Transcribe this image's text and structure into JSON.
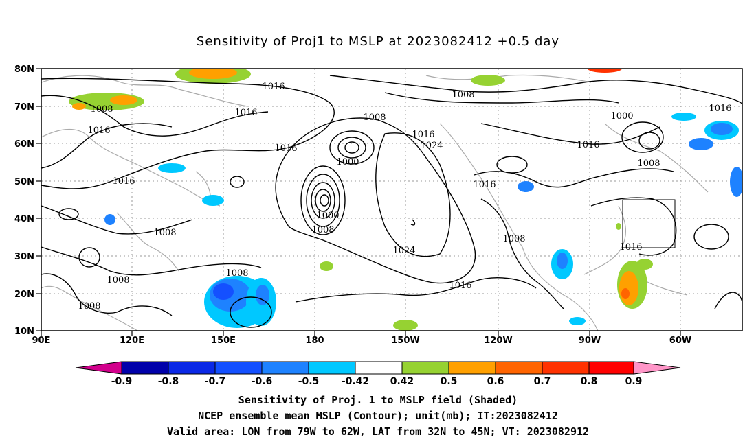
{
  "title": "Sensitivity of Proj1 to MSLP at 2023082412 +0.5 day",
  "map": {
    "lon_labels": [
      "90E",
      "120E",
      "150E",
      "180",
      "150W",
      "120W",
      "90W",
      "60W"
    ],
    "lat_labels": [
      "80N",
      "70N",
      "60N",
      "50N",
      "40N",
      "30N",
      "20N",
      "10N"
    ],
    "contour_labels": [
      "1016",
      "1008",
      "1016",
      "1008",
      "1016",
      "1016",
      "1016",
      "1008",
      "1000",
      "1000",
      "1008",
      "1016",
      "1024",
      "1024",
      "1016",
      "1016",
      "1008",
      "1000",
      "1008",
      "1016",
      "1016",
      "1008",
      "1008",
      "1008",
      "1008",
      "1016",
      "1016",
      "1008"
    ],
    "colors": {
      "land": "#aaaaaa",
      "contour": "#000000",
      "grid": "#999999"
    }
  },
  "colorbar": {
    "labels": [
      "-0.9",
      "-0.8",
      "-0.7",
      "-0.6",
      "-0.5",
      "-0.42",
      "0.42",
      "0.5",
      "0.6",
      "0.7",
      "0.8",
      "0.9"
    ],
    "colors": [
      "#d2008c",
      "#0000aa",
      "#0a28e6",
      "#1450ff",
      "#1e82ff",
      "#00c8ff",
      "#ffffff",
      "#96d232",
      "#ffa000",
      "#ff6400",
      "#ff3200",
      "#ff0000",
      "#ff96c8"
    ]
  },
  "captions": [
    "Sensitivity of Proj. 1 to MSLP field (Shaded)",
    "NCEP ensemble mean MSLP (Contour); unit(mb); IT:2023082412",
    "Valid area: LON from 79W to 62W, LAT from 32N to 45N; VT: 2023082912"
  ]
}
